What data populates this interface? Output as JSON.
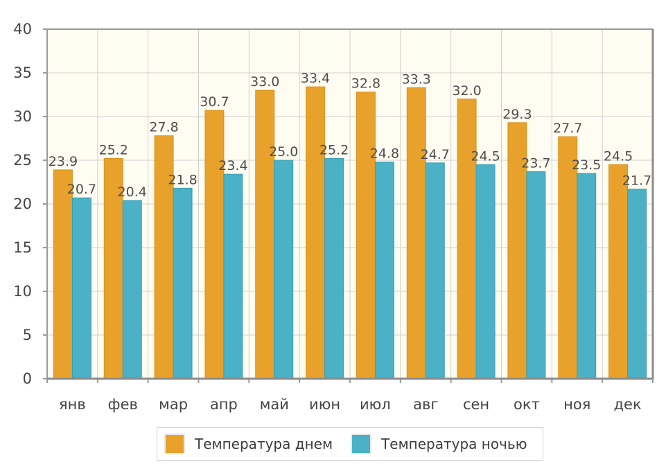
{
  "chart_data": {
    "type": "bar",
    "categories": [
      "янв",
      "фев",
      "мар",
      "апр",
      "май",
      "июн",
      "июл",
      "авг",
      "сен",
      "окт",
      "ноя",
      "дек"
    ],
    "series": [
      {
        "name": "Температура днем",
        "color": "#e8a22b",
        "values": [
          23.9,
          25.2,
          27.8,
          30.7,
          33.0,
          33.4,
          32.8,
          33.3,
          32.0,
          29.3,
          27.7,
          24.5
        ]
      },
      {
        "name": "Температура ночью",
        "color": "#4ab1c6",
        "values": [
          20.7,
          20.4,
          21.8,
          23.4,
          25.0,
          25.2,
          24.8,
          24.7,
          24.5,
          23.7,
          23.5,
          21.7
        ]
      }
    ],
    "ylim": [
      0,
      40
    ],
    "yticks": [
      0,
      5,
      10,
      15,
      20,
      25,
      30,
      35,
      40
    ],
    "grid": true,
    "legend_position": "bottom",
    "plot_background": "#fffdf2"
  }
}
